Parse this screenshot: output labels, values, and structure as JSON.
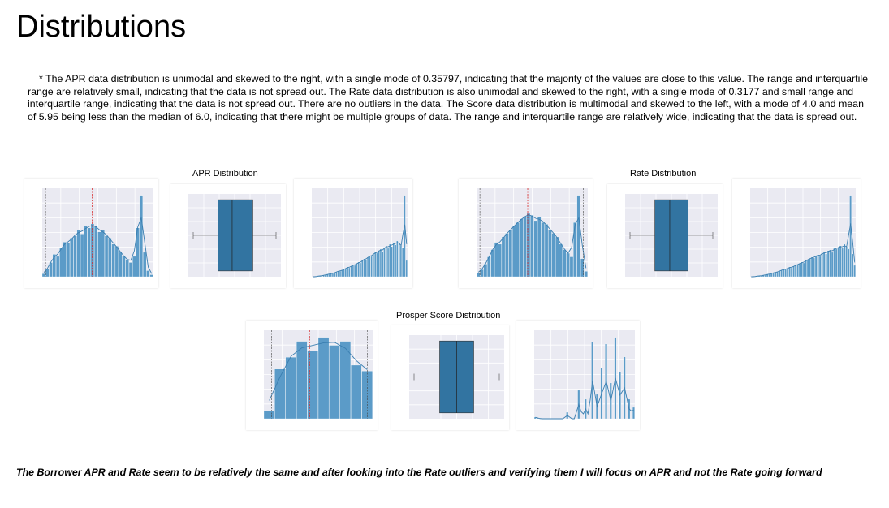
{
  "title": "Distributions",
  "paragraph": "* The APR data distribution is unimodal and skewed to the right, with a single mode of 0.35797, indicating that the majority of the values are close to this value. The range and interquartile range are relatively small, indicating that the data is not spread out. The Rate data distribution is also unimodal and skewed to the right, with a single mode of 0.3177 and small range and interquartile range, indicating that the data is not spread out. There are no outliers in the data. The Score data distribution is multimodal and skewed to the left, with a mode of 4.0 and mean of 5.95 being less than the median of 6.0, indicating that there might be multiple groups of data. The range and interquartile range are relatively wide, indicating that the data is spread out.",
  "groups": [
    {
      "title": "APR Distribution"
    },
    {
      "title": "Rate Distribution"
    },
    {
      "title": "Prosper Score Distribution"
    }
  ],
  "footer": "The Borrower APR and Rate seem to be relatively the same and after looking into the Rate outliers and verifying them I will focus on APR and not the Rate going forward",
  "colors": {
    "bar": "#5b9bc8",
    "bar_edge": "#ffffff",
    "kde": "#3a7eb0",
    "plot_bg": "#eaeaf2",
    "mean_line": "#d62728",
    "box": "#3274a1"
  },
  "chart_data": [
    {
      "type": "bar",
      "title": "",
      "values": [
        3,
        8,
        14,
        22,
        20,
        28,
        34,
        33,
        38,
        40,
        46,
        42,
        50,
        48,
        52,
        50,
        44,
        46,
        40,
        38,
        32,
        30,
        24,
        20,
        17,
        14,
        20,
        48,
        80,
        24,
        6,
        2
      ]
    },
    {
      "type": "box",
      "title": "",
      "whisker_low": 0.0,
      "q1": 0.3,
      "median": 0.47,
      "q3": 0.72,
      "whisker_high": 1.0
    },
    {
      "type": "bar",
      "title": "",
      "values": [
        0,
        0,
        0,
        1,
        1,
        1,
        2,
        2,
        3,
        3,
        4,
        4,
        5,
        6,
        7,
        7,
        8,
        9,
        10,
        12,
        11,
        13,
        15,
        14,
        16,
        18,
        17,
        20,
        22,
        21,
        24,
        26,
        25,
        28,
        30,
        29,
        32,
        34,
        31,
        36,
        38,
        35,
        40,
        37,
        42,
        39,
        44,
        41,
        38,
        36,
        100,
        20
      ]
    },
    {
      "type": "bar",
      "title": "",
      "values": [
        4,
        8,
        14,
        22,
        30,
        38,
        36,
        44,
        48,
        52,
        56,
        60,
        64,
        66,
        70,
        68,
        62,
        66,
        60,
        58,
        52,
        48,
        44,
        36,
        30,
        26,
        22,
        60,
        90,
        20,
        6
      ]
    },
    {
      "type": "box",
      "title": "",
      "whisker_low": 0.0,
      "q1": 0.3,
      "median": 0.48,
      "q3": 0.7,
      "whisker_high": 1.0
    },
    {
      "type": "bar",
      "title": "",
      "values": [
        0,
        0,
        0,
        1,
        1,
        1,
        2,
        2,
        3,
        3,
        4,
        5,
        5,
        6,
        7,
        8,
        9,
        9,
        10,
        12,
        11,
        13,
        14,
        15,
        16,
        18,
        17,
        20,
        21,
        22,
        24,
        23,
        26,
        27,
        25,
        29,
        30,
        28,
        32,
        33,
        30,
        35,
        34,
        36,
        38,
        35,
        40,
        37,
        34,
        100,
        28,
        14
      ]
    },
    {
      "type": "bar",
      "title": "",
      "values": [
        8,
        50,
        62,
        78,
        68,
        82,
        74,
        78,
        54,
        48
      ]
    },
    {
      "type": "box",
      "title": "",
      "whisker_low": 0.0,
      "q1": 0.3,
      "median": 0.5,
      "q3": 0.7,
      "whisker_high": 1.0
    },
    {
      "type": "bar",
      "title": "",
      "values": [
        2,
        1,
        0,
        0,
        0,
        0,
        0,
        0,
        0,
        0,
        0,
        0,
        0,
        0,
        8,
        0,
        0,
        0,
        0,
        35,
        0,
        0,
        24,
        0,
        0,
        94,
        0,
        30,
        0,
        62,
        0,
        92,
        0,
        44,
        0,
        100,
        0,
        58,
        0,
        76,
        0,
        24,
        0,
        14
      ]
    }
  ]
}
